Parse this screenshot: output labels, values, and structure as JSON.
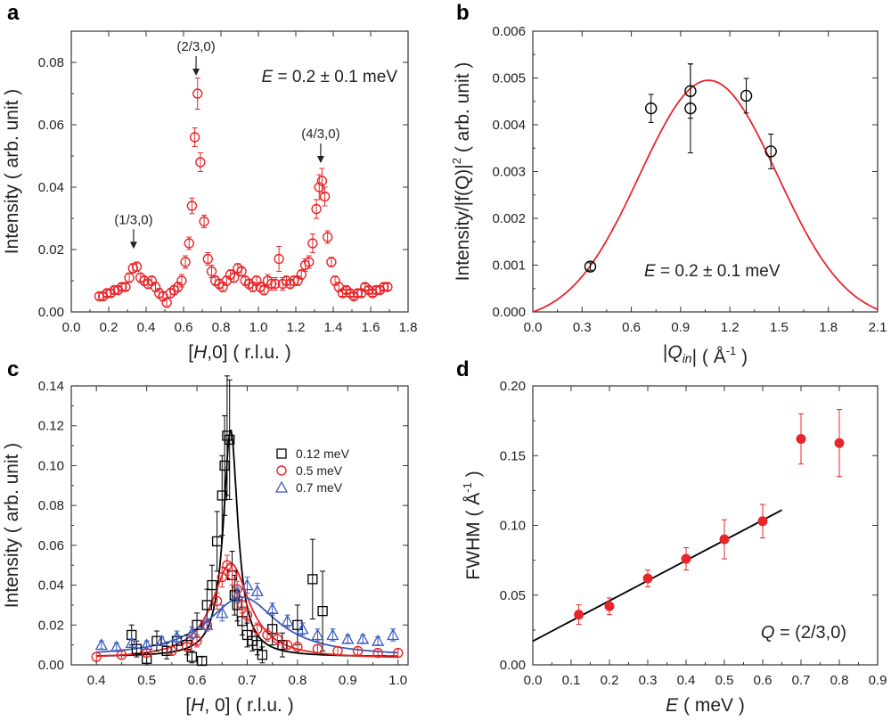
{
  "chart_data": [
    {
      "panel": "a",
      "type": "scatter",
      "xlabel_italic": "H",
      "xlabel_rest": ",0] ( r.l.u. )",
      "xlabel_pre": "[",
      "ylabel": "Intensity ( arb. unit )",
      "xlim": [
        0.0,
        1.8
      ],
      "ylim": [
        0.0,
        0.09
      ],
      "xticks": [
        "0.0",
        "0.2",
        "0.4",
        "0.6",
        "0.8",
        "1.0",
        "1.2",
        "1.4",
        "1.6",
        "1.8"
      ],
      "yticks": [
        "0.00",
        "0.02",
        "0.04",
        "0.06",
        "0.08"
      ],
      "annotation_E_italic": "E",
      "annotation_E_rest": " = 0.2 ± 0.1 meV",
      "peak_labels": [
        {
          "text": "(1/3,0)",
          "x": 0.333,
          "y": 0.0145
        },
        {
          "text": "(2/3,0)",
          "x": 0.667,
          "y": 0.07
        },
        {
          "text": "(4/3,0)",
          "x": 1.333,
          "y": 0.042
        }
      ],
      "color": "#e8262a",
      "x": [
        0.15,
        0.17,
        0.19,
        0.21,
        0.23,
        0.25,
        0.27,
        0.29,
        0.31,
        0.33,
        0.35,
        0.37,
        0.39,
        0.41,
        0.43,
        0.45,
        0.47,
        0.49,
        0.51,
        0.53,
        0.55,
        0.57,
        0.59,
        0.61,
        0.63,
        0.645,
        0.66,
        0.675,
        0.69,
        0.71,
        0.73,
        0.75,
        0.77,
        0.79,
        0.81,
        0.83,
        0.85,
        0.87,
        0.89,
        0.91,
        0.93,
        0.95,
        0.97,
        0.99,
        1.01,
        1.03,
        1.05,
        1.07,
        1.09,
        1.11,
        1.13,
        1.15,
        1.17,
        1.19,
        1.21,
        1.23,
        1.25,
        1.27,
        1.29,
        1.31,
        1.325,
        1.34,
        1.355,
        1.37,
        1.39,
        1.41,
        1.43,
        1.45,
        1.47,
        1.49,
        1.51,
        1.53,
        1.55,
        1.57,
        1.59,
        1.61,
        1.63,
        1.65,
        1.67,
        1.69
      ],
      "y": [
        0.005,
        0.005,
        0.006,
        0.006,
        0.007,
        0.007,
        0.008,
        0.008,
        0.011,
        0.014,
        0.0145,
        0.011,
        0.01,
        0.009,
        0.01,
        0.008,
        0.006,
        0.005,
        0.003,
        0.006,
        0.007,
        0.008,
        0.01,
        0.016,
        0.022,
        0.034,
        0.056,
        0.07,
        0.048,
        0.029,
        0.017,
        0.013,
        0.01,
        0.009,
        0.008,
        0.01,
        0.012,
        0.011,
        0.014,
        0.013,
        0.01,
        0.009,
        0.008,
        0.01,
        0.008,
        0.007,
        0.01,
        0.009,
        0.009,
        0.017,
        0.009,
        0.01,
        0.009,
        0.01,
        0.01,
        0.012,
        0.015,
        0.016,
        0.022,
        0.033,
        0.04,
        0.042,
        0.037,
        0.024,
        0.016,
        0.01,
        0.008,
        0.006,
        0.007,
        0.006,
        0.005,
        0.006,
        0.006,
        0.008,
        0.007,
        0.006,
        0.007,
        0.007,
        0.008,
        0.008
      ],
      "err": [
        0.001,
        0.001,
        0.001,
        0.001,
        0.001,
        0.001,
        0.001,
        0.001,
        0.0015,
        0.0015,
        0.0015,
        0.0015,
        0.0015,
        0.0015,
        0.0015,
        0.0015,
        0.0015,
        0.0015,
        0.0015,
        0.0015,
        0.0015,
        0.0015,
        0.002,
        0.002,
        0.002,
        0.0025,
        0.003,
        0.005,
        0.003,
        0.002,
        0.002,
        0.002,
        0.0015,
        0.0015,
        0.0015,
        0.0015,
        0.0015,
        0.0015,
        0.0015,
        0.0015,
        0.0015,
        0.0015,
        0.0015,
        0.0015,
        0.0015,
        0.0015,
        0.002,
        0.002,
        0.002,
        0.004,
        0.002,
        0.0015,
        0.0015,
        0.0015,
        0.0015,
        0.0015,
        0.002,
        0.002,
        0.003,
        0.003,
        0.004,
        0.004,
        0.003,
        0.002,
        0.0015,
        0.0015,
        0.0015,
        0.001,
        0.001,
        0.001,
        0.001,
        0.001,
        0.001,
        0.001,
        0.001,
        0.001,
        0.001,
        0.001,
        0.001,
        0.001
      ]
    },
    {
      "panel": "b",
      "type": "scatter",
      "xlabel_pre": "|",
      "xlabel_italic": "Q",
      "xlabel_sub": "in",
      "xlabel_rest": "| ( Å",
      "xlabel_sup": "-1",
      "xlabel_end": " )",
      "ylabel": "Intensity/|f(Q)|",
      "ylabel_sup": "2",
      "ylabel_end": " ( arb. unit )",
      "xlim": [
        0.0,
        2.1
      ],
      "ylim": [
        0.0,
        0.006
      ],
      "xticks": [
        "0.0",
        "0.3",
        "0.6",
        "0.9",
        "1.2",
        "1.5",
        "1.8",
        "2.1"
      ],
      "yticks": [
        "0.000",
        "0.001",
        "0.002",
        "0.003",
        "0.004",
        "0.005",
        "0.006"
      ],
      "annotation_E_italic": "E",
      "annotation_E_rest": " = 0.2 ± 0.1 meV",
      "x": [
        0.35,
        0.72,
        0.96,
        0.96,
        1.3,
        1.45
      ],
      "y": [
        0.00097,
        0.00435,
        0.00435,
        0.00472,
        0.00462,
        0.00343
      ],
      "err": [
        8e-05,
        0.0003,
        0.00095,
        0.00058,
        0.00037,
        0.00037
      ],
      "fit_color": "#e8262a",
      "fit_peak": 0.00495,
      "fit_xmax": 2.16
    },
    {
      "panel": "c",
      "type": "scatter",
      "xlabel_pre": "[",
      "xlabel_italic": "H",
      "xlabel_rest": ", 0] ( r.l.u. )",
      "ylabel": "Intensity ( arb. unit )",
      "xlim": [
        0.35,
        1.02
      ],
      "ylim": [
        0.0,
        0.14
      ],
      "xticks": [
        "0.4",
        "0.5",
        "0.6",
        "0.7",
        "0.8",
        "0.9",
        "1.0"
      ],
      "yticks": [
        "0.00",
        "0.02",
        "0.04",
        "0.06",
        "0.08",
        "0.10",
        "0.12",
        "0.14"
      ],
      "series": [
        {
          "name": "0.12 meV",
          "marker": "square",
          "color": "#000000",
          "x": [
            0.47,
            0.48,
            0.5,
            0.52,
            0.54,
            0.56,
            0.58,
            0.59,
            0.6,
            0.61,
            0.62,
            0.63,
            0.64,
            0.65,
            0.655,
            0.66,
            0.665,
            0.67,
            0.675,
            0.68,
            0.69,
            0.7,
            0.71,
            0.72,
            0.73,
            0.75,
            0.77,
            0.8,
            0.83,
            0.85
          ],
          "y": [
            0.015,
            0.008,
            0.003,
            0.012,
            0.007,
            0.012,
            0.01,
            0.004,
            0.02,
            0.002,
            0.03,
            0.04,
            0.062,
            0.085,
            0.1,
            0.115,
            0.113,
            0.045,
            0.035,
            0.03,
            0.022,
            0.015,
            0.012,
            0.01,
            0.005,
            0.018,
            0.01,
            0.02,
            0.043,
            0.027
          ],
          "err": [
            0.005,
            0.004,
            0.003,
            0.005,
            0.004,
            0.005,
            0.005,
            0.003,
            0.006,
            0.002,
            0.008,
            0.01,
            0.015,
            0.02,
            0.025,
            0.03,
            0.03,
            0.012,
            0.01,
            0.008,
            0.007,
            0.006,
            0.005,
            0.005,
            0.004,
            0.008,
            0.006,
            0.01,
            0.02,
            0.02
          ]
        },
        {
          "name": "0.5 meV",
          "marker": "circle",
          "color": "#e8262a",
          "x": [
            0.4,
            0.45,
            0.5,
            0.55,
            0.58,
            0.6,
            0.62,
            0.64,
            0.65,
            0.66,
            0.67,
            0.68,
            0.69,
            0.7,
            0.72,
            0.74,
            0.76,
            0.78,
            0.8,
            0.84,
            0.88,
            0.92,
            0.96,
            1.0
          ],
          "y": [
            0.004,
            0.005,
            0.006,
            0.007,
            0.009,
            0.012,
            0.02,
            0.032,
            0.044,
            0.05,
            0.045,
            0.038,
            0.03,
            0.025,
            0.018,
            0.015,
            0.013,
            0.01,
            0.009,
            0.008,
            0.007,
            0.007,
            0.006,
            0.006
          ],
          "err": [
            0.002,
            0.002,
            0.002,
            0.002,
            0.002,
            0.003,
            0.003,
            0.004,
            0.005,
            0.005,
            0.005,
            0.004,
            0.004,
            0.003,
            0.003,
            0.003,
            0.003,
            0.002,
            0.002,
            0.002,
            0.002,
            0.002,
            0.002,
            0.002
          ]
        },
        {
          "name": "0.7 meV",
          "marker": "triangle",
          "color": "#3a5bbf",
          "x": [
            0.41,
            0.44,
            0.47,
            0.5,
            0.53,
            0.56,
            0.59,
            0.62,
            0.65,
            0.68,
            0.7,
            0.72,
            0.75,
            0.78,
            0.81,
            0.84,
            0.87,
            0.9,
            0.93,
            0.96,
            0.99
          ],
          "y": [
            0.01,
            0.009,
            0.011,
            0.01,
            0.012,
            0.014,
            0.016,
            0.02,
            0.026,
            0.035,
            0.04,
            0.037,
            0.028,
            0.022,
            0.018,
            0.015,
            0.015,
            0.013,
            0.013,
            0.012,
            0.015
          ],
          "err": [
            0.002,
            0.002,
            0.002,
            0.002,
            0.002,
            0.003,
            0.003,
            0.003,
            0.004,
            0.004,
            0.004,
            0.004,
            0.003,
            0.003,
            0.003,
            0.003,
            0.003,
            0.002,
            0.002,
            0.002,
            0.003
          ]
        }
      ],
      "fits": [
        {
          "color": "#000000",
          "center": 0.667,
          "gamma": 0.0175,
          "amp": 0.114,
          "base": 0.004
        },
        {
          "color": "#e8262a",
          "center": 0.667,
          "gamma": 0.045,
          "amp": 0.048,
          "base": 0.003
        },
        {
          "color": "#3a5bbf",
          "center": 0.69,
          "gamma": 0.085,
          "amp": 0.03,
          "base": 0.004
        }
      ]
    },
    {
      "panel": "d",
      "type": "scatter",
      "xlabel_italic": "E",
      "xlabel_rest": " ( meV )",
      "ylabel": "FWHM ( Å",
      "ylabel_sup": "-1",
      "ylabel_end": " )",
      "xlim": [
        0.0,
        0.9
      ],
      "ylim": [
        0.0,
        0.2
      ],
      "xticks": [
        "0.0",
        "0.1",
        "0.2",
        "0.3",
        "0.4",
        "0.5",
        "0.6",
        "0.7",
        "0.8",
        "0.9"
      ],
      "yticks": [
        "0.00",
        "0.05",
        "0.10",
        "0.15",
        "0.20"
      ],
      "annotation_Q_italic": "Q",
      "annotation_Q_rest": " = (2/3,0)",
      "color": "#e8262a",
      "x": [
        0.12,
        0.2,
        0.3,
        0.4,
        0.5,
        0.6,
        0.7,
        0.8
      ],
      "y": [
        0.036,
        0.042,
        0.062,
        0.076,
        0.09,
        0.103,
        0.162,
        0.159
      ],
      "err": [
        0.007,
        0.006,
        0.006,
        0.008,
        0.014,
        0.012,
        0.018,
        0.024
      ],
      "fit_line": {
        "x": [
          0.0,
          0.65
        ],
        "y": [
          0.017,
          0.111
        ],
        "color": "#000000"
      }
    }
  ],
  "panel_letters": [
    "a",
    "b",
    "c",
    "d"
  ]
}
